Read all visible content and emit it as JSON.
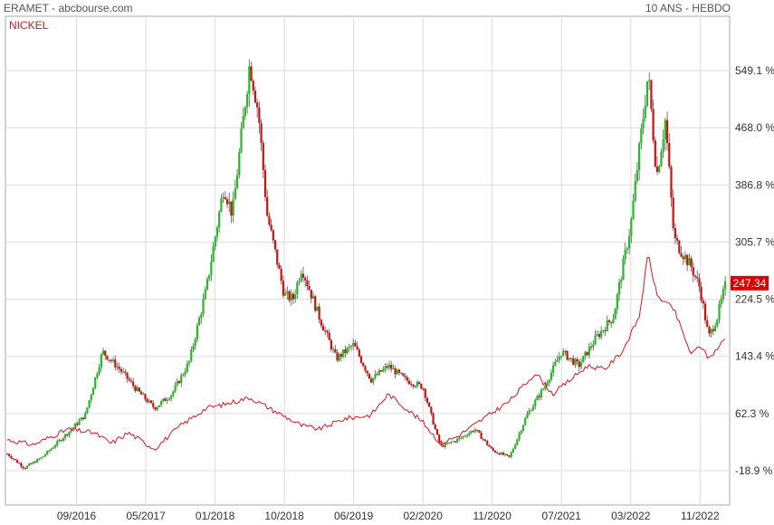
{
  "header": {
    "title": "ERAMET - abcbourse.com",
    "period": "10 ANS - HEBDO",
    "compare_label": "NICKEL"
  },
  "colors": {
    "up_candle": "#22bb22",
    "down_candle": "#cc1111",
    "wick": "#555555",
    "comparison_line": "#e0141e",
    "grid": "#dddddd",
    "last_price_badge": "#dd0000"
  },
  "chart_data": {
    "type": "candlestick",
    "y_unit": "%",
    "y_ticks": [
      -18.9,
      62.3,
      143.4,
      224.5,
      305.7,
      386.8,
      468.0,
      549.1
    ],
    "y_tick_labels": [
      "-18.9 %",
      "62.3 %",
      "143.4 %",
      "224.5 %",
      "305.7 %",
      "386.8 %",
      "468.0 %",
      "549.1 %"
    ],
    "x_tick_labels": [
      "09/2016",
      "05/2017",
      "01/2018",
      "10/2018",
      "06/2019",
      "02/2020",
      "11/2020",
      "07/2021",
      "03/2022",
      "11/2022"
    ],
    "last_value": "247.34",
    "eramet_keypoints": [
      [
        "2016-01",
        5
      ],
      [
        "2016-03",
        -15
      ],
      [
        "2016-05",
        0
      ],
      [
        "2016-08",
        35
      ],
      [
        "2016-10",
        60
      ],
      [
        "2016-12",
        150
      ],
      [
        "2017-02",
        125
      ],
      [
        "2017-04",
        95
      ],
      [
        "2017-06",
        70
      ],
      [
        "2017-08",
        90
      ],
      [
        "2017-10",
        135
      ],
      [
        "2017-12",
        240
      ],
      [
        "2018-02",
        385
      ],
      [
        "2018-03",
        345
      ],
      [
        "2018-05",
        560
      ],
      [
        "2018-06",
        490
      ],
      [
        "2018-07",
        345
      ],
      [
        "2018-09",
        230
      ],
      [
        "2018-10",
        225
      ],
      [
        "2018-11",
        270
      ],
      [
        "2019-01",
        200
      ],
      [
        "2019-03",
        140
      ],
      [
        "2019-05",
        160
      ],
      [
        "2019-07",
        110
      ],
      [
        "2019-09",
        130
      ],
      [
        "2019-11",
        110
      ],
      [
        "2020-01",
        100
      ],
      [
        "2020-03",
        15
      ],
      [
        "2020-05",
        25
      ],
      [
        "2020-07",
        40
      ],
      [
        "2020-09",
        10
      ],
      [
        "2020-11",
        0
      ],
      [
        "2021-01",
        60
      ],
      [
        "2021-03",
        100
      ],
      [
        "2021-05",
        150
      ],
      [
        "2021-07",
        130
      ],
      [
        "2021-09",
        170
      ],
      [
        "2021-11",
        200
      ],
      [
        "2022-01",
        330
      ],
      [
        "2022-03",
        545
      ],
      [
        "2022-04",
        400
      ],
      [
        "2022-05",
        480
      ],
      [
        "2022-06",
        310
      ],
      [
        "2022-08",
        270
      ],
      [
        "2022-09",
        240
      ],
      [
        "2022-10",
        170
      ],
      [
        "2022-11",
        200
      ],
      [
        "2022-12",
        247.34
      ]
    ],
    "nickel_keypoints": [
      [
        "2016-01",
        25
      ],
      [
        "2016-04",
        18
      ],
      [
        "2016-08",
        40
      ],
      [
        "2016-11",
        35
      ],
      [
        "2017-01",
        20
      ],
      [
        "2017-03",
        35
      ],
      [
        "2017-06",
        12
      ],
      [
        "2017-09",
        45
      ],
      [
        "2017-12",
        70
      ],
      [
        "2018-02",
        75
      ],
      [
        "2018-05",
        85
      ],
      [
        "2018-08",
        65
      ],
      [
        "2018-11",
        45
      ],
      [
        "2019-01",
        40
      ],
      [
        "2019-04",
        55
      ],
      [
        "2019-07",
        60
      ],
      [
        "2019-09",
        90
      ],
      [
        "2019-11",
        70
      ],
      [
        "2020-01",
        50
      ],
      [
        "2020-03",
        20
      ],
      [
        "2020-05",
        30
      ],
      [
        "2020-08",
        55
      ],
      [
        "2020-11",
        80
      ],
      [
        "2021-02",
        120
      ],
      [
        "2021-04",
        90
      ],
      [
        "2021-06",
        110
      ],
      [
        "2021-08",
        130
      ],
      [
        "2021-10",
        125
      ],
      [
        "2021-12",
        150
      ],
      [
        "2022-02",
        200
      ],
      [
        "2022-03",
        290
      ],
      [
        "2022-04",
        230
      ],
      [
        "2022-06",
        210
      ],
      [
        "2022-08",
        145
      ],
      [
        "2022-09",
        160
      ],
      [
        "2022-10",
        140
      ],
      [
        "2022-12",
        170
      ]
    ]
  }
}
